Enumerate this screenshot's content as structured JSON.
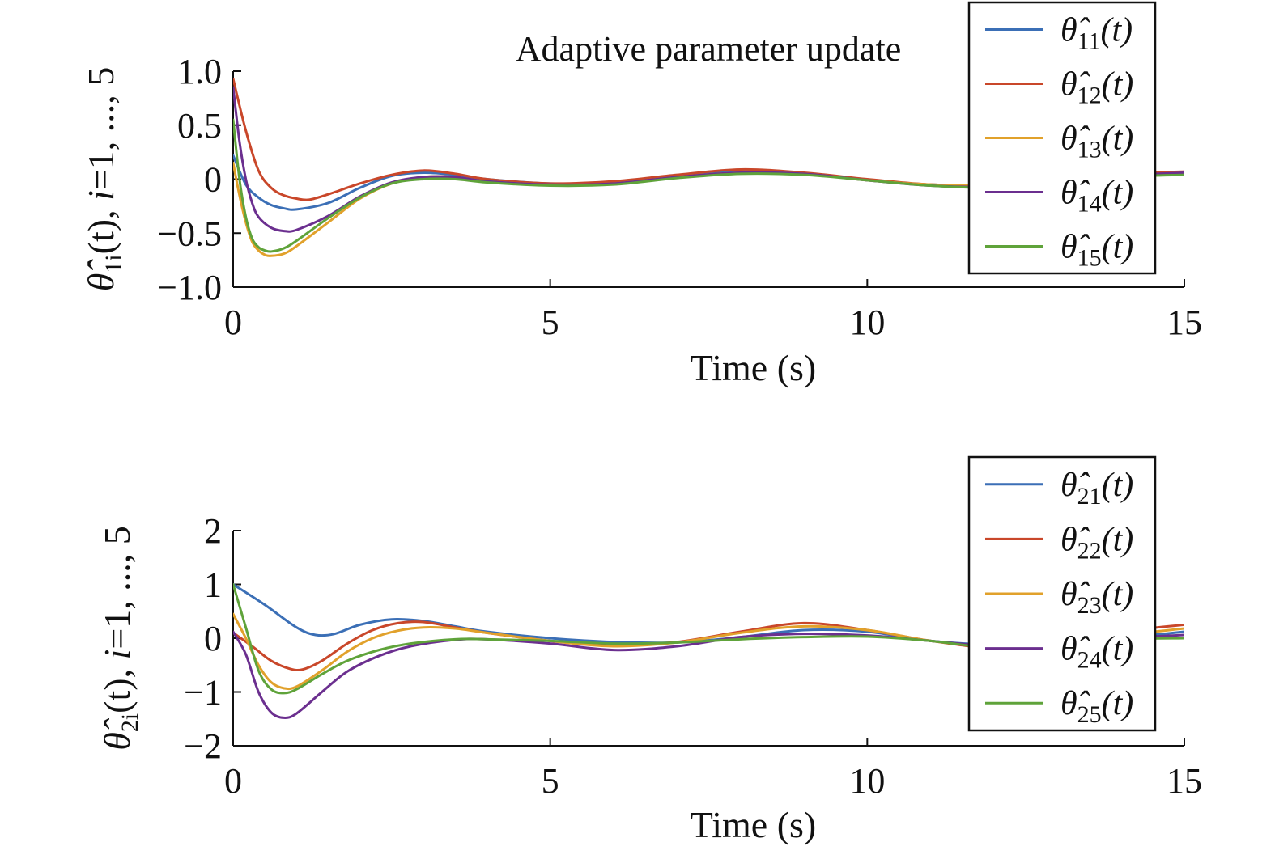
{
  "chart_data": [
    {
      "type": "line",
      "title": "Adaptive parameter update",
      "xlabel": "Time (s)",
      "ylabel": "θ̂1i(t), i=1, ..., 5",
      "ylabel_parts": {
        "main": "θ̂",
        "sub": "1i",
        "rest": "(t), ",
        "italic_i": "i",
        "tail": "=1, ..., 5"
      },
      "xlim": [
        0,
        15
      ],
      "ylim": [
        -1,
        1
      ],
      "xticks": [
        0,
        5,
        10,
        15
      ],
      "xtick_labels": [
        "0",
        "5",
        "10",
        "15"
      ],
      "yticks": [
        -1,
        -0.5,
        0,
        0.5,
        1
      ],
      "ytick_labels": [
        "−1.0",
        "−0.5",
        "0",
        "0.5",
        "1.0"
      ],
      "legend_position": "top-right",
      "grid": false,
      "series": [
        {
          "name": "θ̂11(t)",
          "label_main": "θ̂",
          "label_sub": "11",
          "label_tail": "(t)",
          "color": "#3b6fb6",
          "x": [
            0,
            0.2,
            0.4,
            0.6,
            0.8,
            1.0,
            1.5,
            2.0,
            2.5,
            3.0,
            3.5,
            4.0,
            5.0,
            6.0,
            7.0,
            8.0,
            9.0,
            10.0,
            11.0,
            12.0,
            13.0,
            14.0,
            15.0
          ],
          "y": [
            0.22,
            -0.05,
            -0.17,
            -0.24,
            -0.27,
            -0.28,
            -0.22,
            -0.08,
            0.03,
            0.06,
            0.04,
            0.0,
            -0.04,
            -0.03,
            0.03,
            0.07,
            0.05,
            -0.01,
            -0.05,
            -0.06,
            -0.02,
            0.04,
            0.05
          ]
        },
        {
          "name": "θ̂12(t)",
          "label_main": "θ̂",
          "label_sub": "12",
          "label_tail": "(t)",
          "color": "#c9472a",
          "x": [
            0,
            0.2,
            0.4,
            0.6,
            0.8,
            1.0,
            1.2,
            1.5,
            2.0,
            2.5,
            3.0,
            3.5,
            4.0,
            5.0,
            6.0,
            7.0,
            8.0,
            9.0,
            10.0,
            11.0,
            12.0,
            13.0,
            14.0,
            15.0
          ],
          "y": [
            0.93,
            0.45,
            0.08,
            -0.08,
            -0.15,
            -0.18,
            -0.19,
            -0.14,
            -0.04,
            0.04,
            0.08,
            0.05,
            0.0,
            -0.04,
            -0.02,
            0.04,
            0.09,
            0.06,
            0.0,
            -0.05,
            -0.05,
            -0.01,
            0.05,
            0.07
          ]
        },
        {
          "name": "θ̂13(t)",
          "label_main": "θ̂",
          "label_sub": "13",
          "label_tail": "(t)",
          "color": "#e1a12b",
          "x": [
            0,
            0.1,
            0.2,
            0.3,
            0.4,
            0.5,
            0.6,
            0.8,
            1.0,
            1.5,
            2.0,
            2.5,
            3.0,
            3.5,
            4.0,
            5.0,
            6.0,
            7.0,
            8.0,
            9.0,
            10.0,
            11.0,
            12.0,
            13.0,
            14.0,
            15.0
          ],
          "y": [
            0.15,
            -0.15,
            -0.4,
            -0.58,
            -0.66,
            -0.7,
            -0.71,
            -0.69,
            -0.62,
            -0.4,
            -0.18,
            -0.04,
            0.02,
            0.02,
            -0.02,
            -0.05,
            -0.04,
            0.02,
            0.06,
            0.05,
            -0.01,
            -0.05,
            -0.06,
            -0.03,
            0.03,
            0.05
          ]
        },
        {
          "name": "θ̂14(t)",
          "label_main": "θ̂",
          "label_sub": "14",
          "label_tail": "(t)",
          "color": "#6b2f8f",
          "x": [
            0,
            0.1,
            0.2,
            0.3,
            0.4,
            0.6,
            0.8,
            1.0,
            1.5,
            2.0,
            2.5,
            3.0,
            3.5,
            4.0,
            5.0,
            6.0,
            7.0,
            8.0,
            9.0,
            10.0,
            11.0,
            12.0,
            13.0,
            14.0,
            15.0
          ],
          "y": [
            0.85,
            0.35,
            0.0,
            -0.22,
            -0.35,
            -0.45,
            -0.48,
            -0.47,
            -0.34,
            -0.16,
            -0.03,
            0.02,
            0.02,
            -0.02,
            -0.05,
            -0.04,
            0.02,
            0.06,
            0.05,
            -0.01,
            -0.06,
            -0.07,
            -0.03,
            0.03,
            0.06
          ]
        },
        {
          "name": "θ̂15(t)",
          "label_main": "θ̂",
          "label_sub": "15",
          "label_tail": "(t)",
          "color": "#5fa33a",
          "x": [
            0,
            0.1,
            0.2,
            0.3,
            0.4,
            0.5,
            0.6,
            0.8,
            1.0,
            1.5,
            2.0,
            2.5,
            3.0,
            3.5,
            4.0,
            5.0,
            6.0,
            7.0,
            8.0,
            9.0,
            10.0,
            11.0,
            12.0,
            13.0,
            14.0,
            15.0
          ],
          "y": [
            0.55,
            0.0,
            -0.35,
            -0.55,
            -0.63,
            -0.66,
            -0.67,
            -0.64,
            -0.57,
            -0.36,
            -0.17,
            -0.04,
            0.0,
            0.0,
            -0.03,
            -0.06,
            -0.05,
            0.01,
            0.05,
            0.04,
            -0.01,
            -0.06,
            -0.08,
            -0.04,
            0.02,
            0.04
          ]
        }
      ]
    },
    {
      "type": "line",
      "title": "",
      "xlabel": "Time (s)",
      "ylabel": "θ̂2i(t), i=1, ..., 5",
      "ylabel_parts": {
        "main": "θ̂",
        "sub": "2i",
        "rest": "(t), ",
        "italic_i": "i",
        "tail": "=1, ..., 5"
      },
      "xlim": [
        0,
        15
      ],
      "ylim": [
        -2,
        2
      ],
      "xticks": [
        0,
        5,
        10,
        15
      ],
      "xtick_labels": [
        "0",
        "5",
        "10",
        "15"
      ],
      "yticks": [
        -2,
        -1,
        0,
        1,
        2
      ],
      "ytick_labels": [
        "−2",
        "−1",
        "0",
        "1",
        "2"
      ],
      "legend_position": "top-right",
      "grid": false,
      "series": [
        {
          "name": "θ̂21(t)",
          "label_main": "θ̂",
          "label_sub": "21",
          "label_tail": "(t)",
          "color": "#3b6fb6",
          "x": [
            0,
            0.5,
            1.0,
            1.3,
            1.6,
            2.0,
            2.5,
            3.0,
            3.5,
            4.0,
            5.0,
            6.0,
            7.0,
            8.0,
            9.0,
            10.0,
            11.0,
            12.0,
            13.0,
            14.0,
            15.0
          ],
          "y": [
            1.0,
            0.62,
            0.2,
            0.06,
            0.08,
            0.25,
            0.35,
            0.32,
            0.22,
            0.12,
            0.0,
            -0.07,
            -0.08,
            0.02,
            0.15,
            0.12,
            -0.05,
            -0.12,
            -0.1,
            0.0,
            0.12
          ]
        },
        {
          "name": "θ̂22(t)",
          "label_main": "θ̂",
          "label_sub": "22",
          "label_tail": "(t)",
          "color": "#c9472a",
          "x": [
            0,
            0.3,
            0.6,
            0.9,
            1.1,
            1.4,
            1.8,
            2.2,
            2.6,
            3.0,
            3.5,
            4.0,
            5.0,
            6.0,
            7.0,
            8.0,
            9.0,
            10.0,
            11.0,
            12.0,
            13.0,
            14.0,
            15.0
          ],
          "y": [
            0.1,
            -0.15,
            -0.42,
            -0.57,
            -0.58,
            -0.42,
            -0.1,
            0.15,
            0.28,
            0.3,
            0.2,
            0.1,
            -0.05,
            -0.14,
            -0.07,
            0.12,
            0.28,
            0.15,
            -0.05,
            -0.18,
            -0.1,
            0.12,
            0.25
          ]
        },
        {
          "name": "θ̂23(t)",
          "label_main": "θ̂",
          "label_sub": "23",
          "label_tail": "(t)",
          "color": "#e1a12b",
          "x": [
            0,
            0.2,
            0.4,
            0.6,
            0.8,
            1.0,
            1.4,
            1.8,
            2.2,
            2.6,
            3.0,
            3.5,
            4.0,
            5.0,
            6.0,
            7.0,
            8.0,
            9.0,
            10.0,
            11.0,
            12.0,
            13.0,
            14.0,
            15.0
          ],
          "y": [
            0.45,
            0.0,
            -0.5,
            -0.82,
            -0.93,
            -0.9,
            -0.6,
            -0.25,
            0.0,
            0.14,
            0.2,
            0.18,
            0.1,
            -0.05,
            -0.15,
            -0.08,
            0.1,
            0.22,
            0.15,
            -0.05,
            -0.15,
            -0.12,
            0.05,
            0.18
          ]
        },
        {
          "name": "θ̂24(t)",
          "label_main": "θ̂",
          "label_sub": "24",
          "label_tail": "(t)",
          "color": "#6b2f8f",
          "x": [
            0,
            0.2,
            0.4,
            0.6,
            0.8,
            1.0,
            1.4,
            1.8,
            2.3,
            2.8,
            3.5,
            4.0,
            5.0,
            6.0,
            7.0,
            8.0,
            9.0,
            10.0,
            11.0,
            12.0,
            13.0,
            14.0,
            15.0
          ],
          "y": [
            0.12,
            -0.3,
            -1.0,
            -1.38,
            -1.48,
            -1.4,
            -1.0,
            -0.62,
            -0.33,
            -0.15,
            -0.03,
            -0.02,
            -0.1,
            -0.22,
            -0.15,
            0.02,
            0.08,
            0.05,
            -0.05,
            -0.15,
            -0.1,
            0.0,
            0.06
          ]
        },
        {
          "name": "θ̂25(t)",
          "label_main": "θ̂",
          "label_sub": "25",
          "label_tail": "(t)",
          "color": "#5fa33a",
          "x": [
            0,
            0.2,
            0.4,
            0.6,
            0.8,
            1.0,
            1.4,
            1.8,
            2.3,
            2.8,
            3.5,
            4.0,
            5.0,
            6.0,
            7.0,
            8.0,
            9.0,
            10.0,
            11.0,
            12.0,
            13.0,
            14.0,
            15.0
          ],
          "y": [
            1.0,
            0.2,
            -0.6,
            -0.95,
            -1.02,
            -0.95,
            -0.67,
            -0.42,
            -0.22,
            -0.1,
            -0.02,
            -0.02,
            -0.05,
            -0.1,
            -0.08,
            -0.02,
            0.02,
            0.03,
            -0.05,
            -0.18,
            -0.12,
            -0.02,
            0.0
          ]
        }
      ]
    }
  ]
}
